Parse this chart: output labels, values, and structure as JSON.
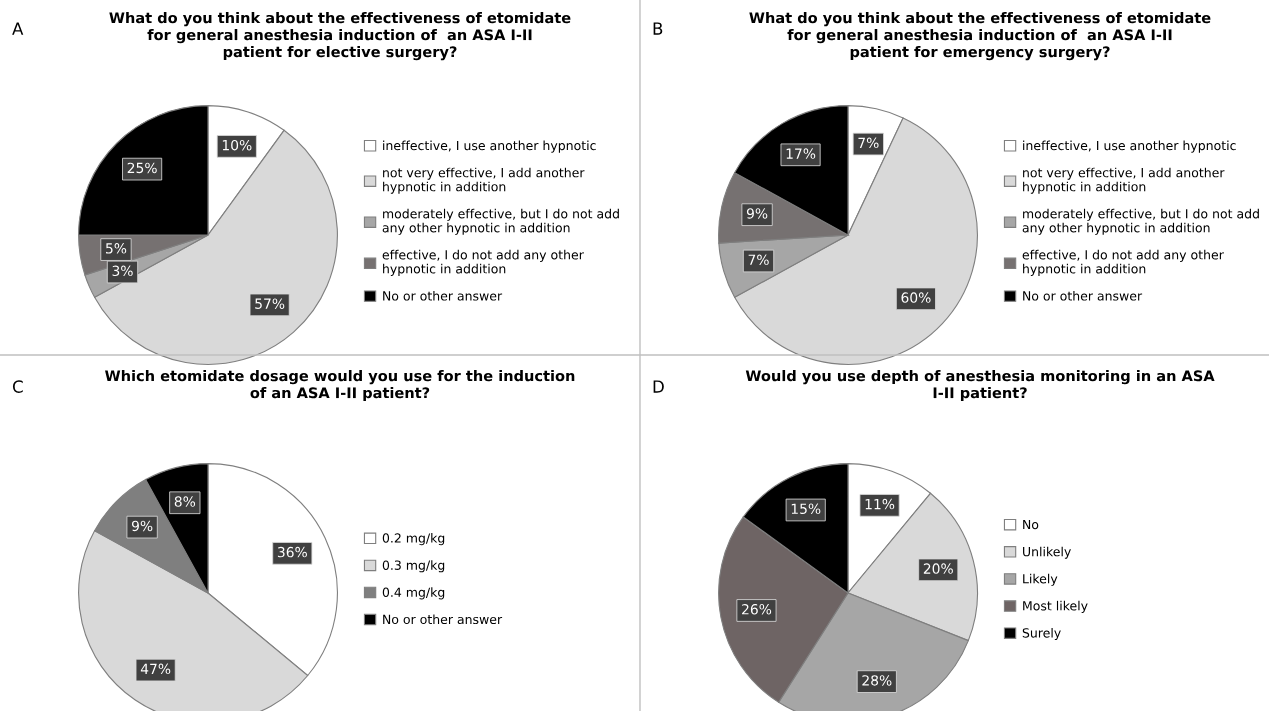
{
  "chart_data": [
    {
      "type": "pie",
      "title": "What do you think about the effectiveness of etomidate for general anesthesia induction of  an ASA I-II patient for elective surgery?",
      "annotations": [
        "A"
      ],
      "categories": [
        "ineffective, I use another hypnotic",
        "not very effective, I add another hypnotic in addition",
        "moderately effective, but I do not add any other hypnotic in addition",
        "effective, I do not add any other hypnotic in addition",
        "No or other answer"
      ],
      "values": [
        10,
        57,
        3,
        5,
        25
      ],
      "value_labels": [
        "10%",
        "57%",
        "3%",
        "5%",
        "25%"
      ],
      "colors": [
        "#ffffff",
        "#d9d9d9",
        "#a6a6a6",
        "#767171",
        "#000000"
      ],
      "legend": "right"
    },
    {
      "type": "pie",
      "title": "What do you think about the effectiveness of etomidate for general anesthesia induction of  an ASA I-II patient for emergency surgery?",
      "annotations": [
        "B"
      ],
      "categories": [
        "ineffective, I use another hypnotic",
        "not very effective, I add another hypnotic in addition",
        "moderately effective, but I do not add any other hypnotic in addition",
        "effective, I do not add any other hypnotic in addition",
        "No or other answer"
      ],
      "values": [
        7,
        60,
        7,
        9,
        17
      ],
      "value_labels": [
        "7%",
        "60%",
        "7%",
        "9%",
        "17%"
      ],
      "colors": [
        "#ffffff",
        "#d9d9d9",
        "#a6a6a6",
        "#767171",
        "#000000"
      ],
      "legend": "right"
    },
    {
      "type": "pie",
      "title": "Which etomidate dosage would you use for the induction of an ASA I-II patient?",
      "annotations": [
        "C"
      ],
      "categories": [
        "0.2 mg/kg",
        "0.3 mg/kg",
        "0.4 mg/kg",
        "No or other answer"
      ],
      "values": [
        36,
        47,
        9,
        8
      ],
      "value_labels": [
        "36%",
        "47%",
        "9%",
        "8%"
      ],
      "colors": [
        "#ffffff",
        "#d9d9d9",
        "#7f7f7f",
        "#000000"
      ],
      "legend": "right"
    },
    {
      "type": "pie",
      "title": "Would you use depth of anesthesia monitoring in an ASA I-II patient?",
      "annotations": [
        "D"
      ],
      "categories": [
        "No",
        "Unlikely",
        "Likely",
        "Most likely",
        "Surely"
      ],
      "values": [
        11,
        20,
        28,
        26,
        15
      ],
      "value_labels": [
        "11%",
        "20%",
        "28%",
        "26%",
        "15%"
      ],
      "colors": [
        "#ffffff",
        "#d9d9d9",
        "#a6a6a6",
        "#6e6464",
        "#000000"
      ],
      "legend": "right"
    }
  ]
}
